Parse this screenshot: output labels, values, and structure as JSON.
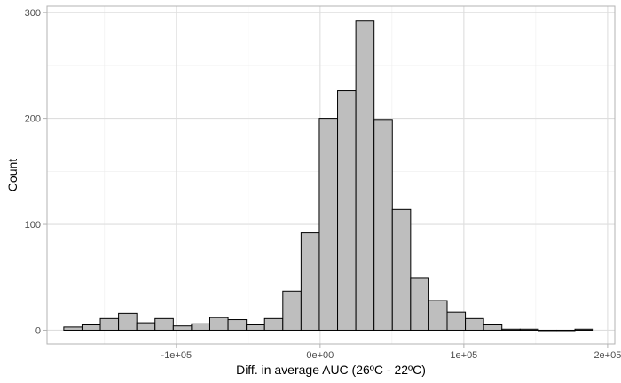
{
  "chart_data": {
    "type": "bar",
    "title": "",
    "xlabel": "Diff. in average AUC (26ºC - 22ºC)",
    "ylabel": "Count",
    "xlim": [
      -190000,
      205000
    ],
    "ylim": [
      -13,
      306
    ],
    "x_ticks": [
      {
        "value": -100000,
        "label": "-1e+05"
      },
      {
        "value": 0,
        "label": "0e+00"
      },
      {
        "value": 100000,
        "label": "1e+05"
      },
      {
        "value": 200000,
        "label": "2e+05"
      }
    ],
    "y_ticks": [
      {
        "value": 0,
        "label": "0"
      },
      {
        "value": 100,
        "label": "100"
      },
      {
        "value": 200,
        "label": "200"
      },
      {
        "value": 300,
        "label": "300"
      }
    ],
    "grid": true,
    "bin_width": 12700,
    "bins": [
      {
        "x": -172000,
        "count": 3
      },
      {
        "x": -159300,
        "count": 5
      },
      {
        "x": -146600,
        "count": 11
      },
      {
        "x": -133900,
        "count": 16
      },
      {
        "x": -121200,
        "count": 7
      },
      {
        "x": -108500,
        "count": 11
      },
      {
        "x": -95800,
        "count": 4
      },
      {
        "x": -83100,
        "count": 6
      },
      {
        "x": -70400,
        "count": 12
      },
      {
        "x": -57700,
        "count": 10
      },
      {
        "x": -45000,
        "count": 5
      },
      {
        "x": -32300,
        "count": 11
      },
      {
        "x": -19600,
        "count": 37
      },
      {
        "x": -6900,
        "count": 92
      },
      {
        "x": 5800,
        "count": 200
      },
      {
        "x": 18500,
        "count": 226
      },
      {
        "x": 31200,
        "count": 292
      },
      {
        "x": 43900,
        "count": 199
      },
      {
        "x": 56600,
        "count": 114
      },
      {
        "x": 69300,
        "count": 49
      },
      {
        "x": 82000,
        "count": 28
      },
      {
        "x": 94700,
        "count": 17
      },
      {
        "x": 107400,
        "count": 11
      },
      {
        "x": 120100,
        "count": 5
      },
      {
        "x": 132800,
        "count": 1
      },
      {
        "x": 145500,
        "count": 1
      },
      {
        "x": 158200,
        "count": 0
      },
      {
        "x": 170900,
        "count": 0
      },
      {
        "x": 183600,
        "count": 1
      }
    ],
    "colors": {
      "bar_fill": "#bebebe",
      "bar_stroke": "#000000",
      "panel_border": "#b3b3b3",
      "grid_major": "#dedede",
      "grid_minor": "#ededed"
    }
  }
}
